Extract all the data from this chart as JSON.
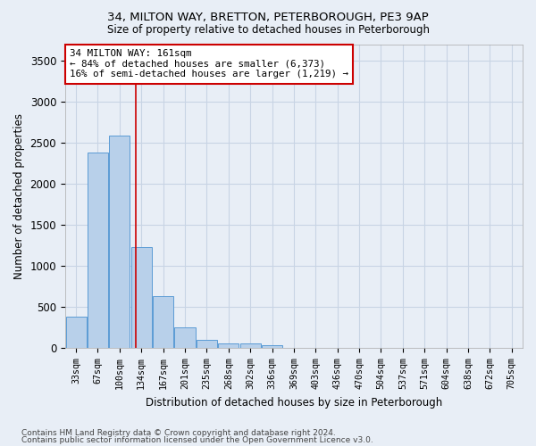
{
  "title": "34, MILTON WAY, BRETTON, PETERBOROUGH, PE3 9AP",
  "subtitle": "Size of property relative to detached houses in Peterborough",
  "xlabel": "Distribution of detached houses by size in Peterborough",
  "ylabel": "Number of detached properties",
  "footnote1": "Contains HM Land Registry data © Crown copyright and database right 2024.",
  "footnote2": "Contains public sector information licensed under the Open Government Licence v3.0.",
  "bar_labels": [
    "33sqm",
    "67sqm",
    "100sqm",
    "134sqm",
    "167sqm",
    "201sqm",
    "235sqm",
    "268sqm",
    "302sqm",
    "336sqm",
    "369sqm",
    "403sqm",
    "436sqm",
    "470sqm",
    "504sqm",
    "537sqm",
    "571sqm",
    "604sqm",
    "638sqm",
    "672sqm",
    "705sqm"
  ],
  "bar_values": [
    390,
    2390,
    2590,
    1230,
    640,
    255,
    100,
    60,
    55,
    40,
    0,
    0,
    0,
    0,
    0,
    0,
    0,
    0,
    0,
    0,
    0
  ],
  "bar_color": "#b8d0ea",
  "bar_edge_color": "#5b9bd5",
  "grid_color": "#c8d4e4",
  "background_color": "#e8eef6",
  "vline_x": 2.73,
  "vline_color": "#cc0000",
  "annotation_line1": "34 MILTON WAY: 161sqm",
  "annotation_line2": "← 84% of detached houses are smaller (6,373)",
  "annotation_line3": "16% of semi-detached houses are larger (1,219) →",
  "ylim": [
    0,
    3700
  ],
  "yticks": [
    0,
    500,
    1000,
    1500,
    2000,
    2500,
    3000,
    3500
  ]
}
